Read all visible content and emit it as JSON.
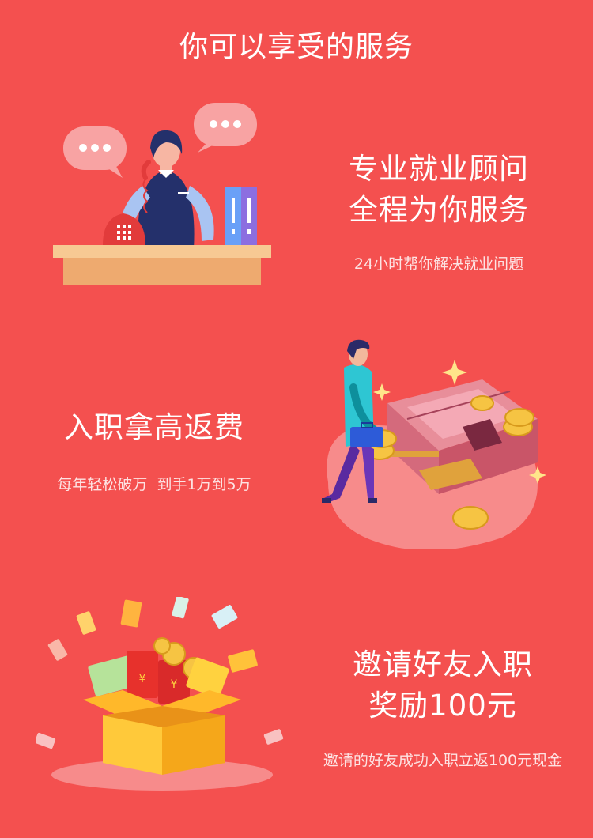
{
  "page": {
    "title": "你可以享受的服务"
  },
  "features": [
    {
      "title_lines": [
        "专业就业顾问",
        "全程为你服务"
      ],
      "subtitle": "24小时帮你解决就业问题",
      "illustration": "customer-service-agent-illustration"
    },
    {
      "title_lines": [
        "入职拿高返费"
      ],
      "subtitle": "每年轻松破万  到手1万到5万",
      "illustration": "man-with-money-stacks-illustration"
    },
    {
      "title_lines": [
        "邀请好友入职",
        "奖励100元"
      ],
      "subtitle": "邀请的好友成功入职立返100元现金",
      "illustration": "gift-box-red-envelopes-illustration"
    }
  ],
  "colors": {
    "background": "#f4504f",
    "text": "#ffffff",
    "subtext": "#fde3e3"
  }
}
